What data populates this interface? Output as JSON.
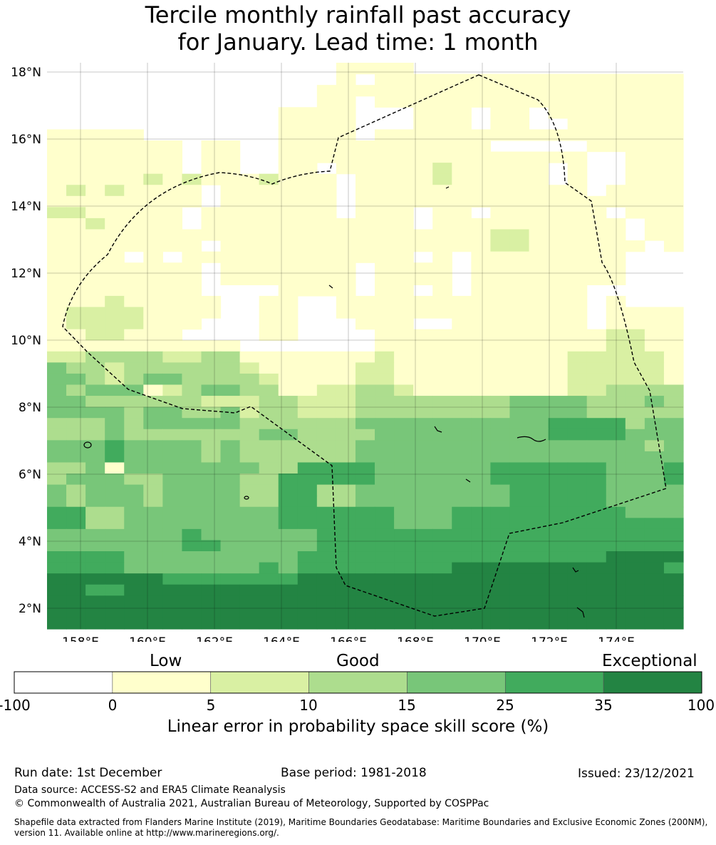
{
  "title_line1": "Tercile monthly rainfall past accuracy",
  "title_line2": "for January. Lead time: 1 month",
  "map": {
    "lon_ticks": [
      "158°E",
      "160°E",
      "162°E",
      "164°E",
      "166°E",
      "168°E",
      "170°E",
      "172°E",
      "174°E"
    ],
    "lat_ticks": [
      "18°N",
      "16°N",
      "14°N",
      "12°N",
      "10°N",
      "8°N",
      "6°N",
      "4°N",
      "2°N"
    ],
    "colors": [
      "#ffffff",
      "#ffffcc",
      "#d9f0a3",
      "#addd8e",
      "#78c679",
      "#41ab5d",
      "#238443"
    ],
    "grid": [
      "000000000000000111100000000000000",
      "000000000000000101111111111111111",
      "000000000000001111111111111111111",
      "000000000000001101111111111111111",
      "000000000000111100011101101111111",
      "000000000000111100011101100111111",
      "111110000000111101111111111111111",
      "111111101100111111111110000011111",
      "111111101100111111111111111100111",
      "111111101100110111112111110100111",
      "111112121112111011112111110100111",
      "121211110111111011111111111101111",
      "111111110111111011111111111111111",
      "221111101111111011101101111110111",
      "112111101111111111101111111111011",
      "111111111111111111111112211111011",
      "111111110111111111111112211111101",
      "111101011111111111101011111111000",
      "111111110111111101111011111111000",
      "111111110111111101111011111111000",
      "111111110000111101101011111100000",
      "111211111001100111111111111101000",
      "122221111001100111111111111101111",
      "122221110001100011100111111101111",
      "112211100001100001111111111112211",
      "111111111100000001111111111112211",
      "223333223311111112111111111222221",
      "433233333321111122111111111222221",
      "443234433332111122111111111222221",
      "434441234433112233211111111223333",
      "443333332223322233333333444433343",
      "444434433423322233333333444433333",
      "333434444433333344444444445555344",
      "333433333334433334444444445555444",
      "444544443433333344444444444444434",
      "444544443433333344444444444444444",
      "334144444443355554444445555554445",
      "344433444433555554444445555554445",
      "434443444433553344444444555554444",
      "434443444433553344444444555554444",
      "553344444444555555444555555555444",
      "553344444444555555444555555555555",
      "444444454444445555555555555555555",
      "444444455444445555555555555555555",
      "555544444444455555555555555556666",
      "555544444445455555555666666666665",
      "666666555555566666666666666666666",
      "665566666666666666666666666666666",
      "666666666666666666666666666666666",
      "666666666666666666666666666666666",
      "666666666666666666666666666666666"
    ]
  },
  "colorbar": {
    "labels": [
      "Low",
      "Good",
      "Exceptional"
    ],
    "ticks": [
      "-100",
      "0",
      "5",
      "10",
      "15",
      "25",
      "35",
      "100"
    ],
    "title": "Linear error in probability space skill score (%)"
  },
  "footer": {
    "run_date": "Run date: 1st December",
    "base_period": "Base period: 1981-2018",
    "issued": "Issued: 23/12/2021",
    "data_source": "Data source: ACCESS-S2 and ERA5 Climate Reanalysis",
    "copyright": "© Commonwealth of Australia 2021, Australian Bureau of Meteorology, Supported by COSPPac",
    "shapefile": "Shapefile data extracted from Flanders Marine Institute (2019), Maritime Boundaries Geodatabase: Maritime Boundaries and Exclusive Economic Zones (200NM), version 11. Available online at http://www.marineregions.org/."
  }
}
